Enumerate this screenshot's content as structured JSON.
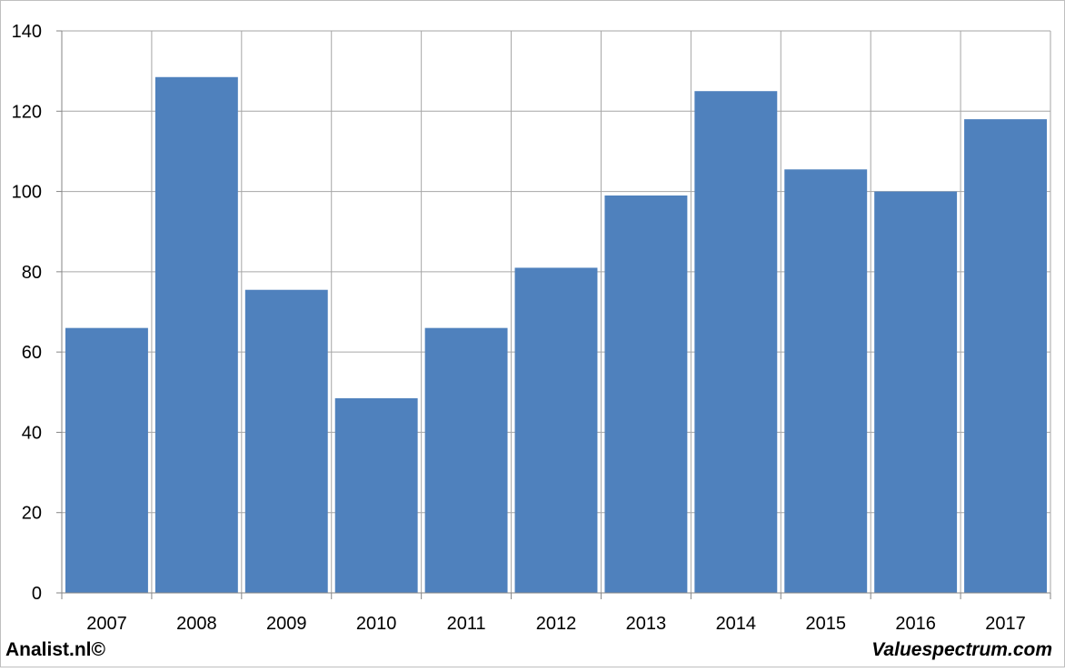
{
  "footer": {
    "left_text": "Analist.nl©",
    "right_text": "Valuespectrum.com"
  },
  "colors": {
    "bar": "#4f81bd",
    "grid": "#a6a6a6",
    "axis": "#868686",
    "frame": "#bfbfbf"
  },
  "chart_data": {
    "type": "bar",
    "categories": [
      "2007",
      "2008",
      "2009",
      "2010",
      "2011",
      "2012",
      "2013",
      "2014",
      "2015",
      "2016",
      "2017"
    ],
    "values": [
      66,
      128.5,
      75.5,
      48.5,
      66,
      81,
      99,
      125,
      105.5,
      100,
      118
    ],
    "title": "",
    "xlabel": "",
    "ylabel": "",
    "ylim": [
      0,
      140
    ],
    "yticks": [
      0,
      20,
      40,
      60,
      80,
      100,
      120,
      140
    ],
    "grid": true,
    "legend": "none"
  }
}
